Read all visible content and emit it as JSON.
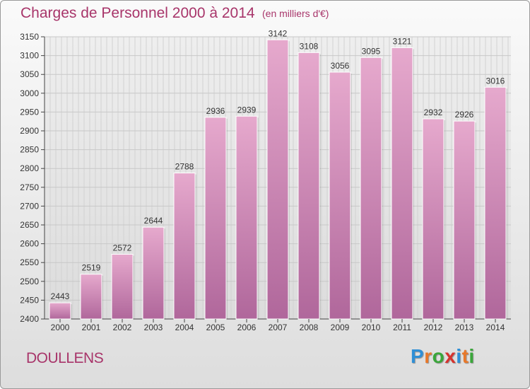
{
  "header": {
    "title": "Charges de Personnel 2000 à 2014",
    "subtitle": "(en milliers d'€)"
  },
  "footer": {
    "town": "DOULLENS",
    "logo_letters": [
      "P",
      "r",
      "o",
      "x",
      "i",
      "t",
      "i"
    ],
    "logo_colors": [
      "#2f8fd6",
      "#e8782a",
      "#3aa63a",
      "#d6322d",
      "#2f8fd6",
      "#e8782a",
      "#3aa63a"
    ]
  },
  "chart_data": {
    "type": "bar",
    "title": "Charges de Personnel 2000 à 2014",
    "subtitle": "(en milliers d'€)",
    "xlabel": "",
    "ylabel": "",
    "categories": [
      "2000",
      "2001",
      "2002",
      "2003",
      "2004",
      "2005",
      "2006",
      "2007",
      "2008",
      "2009",
      "2010",
      "2011",
      "2012",
      "2013",
      "2014"
    ],
    "values": [
      2443,
      2519,
      2572,
      2644,
      2788,
      2936,
      2939,
      3142,
      3108,
      3056,
      3095,
      3121,
      2932,
      2926,
      3016
    ],
    "ylim": [
      2400,
      3150
    ],
    "yticks": [
      2400,
      2450,
      2500,
      2550,
      2600,
      2650,
      2700,
      2750,
      2800,
      2850,
      2900,
      2950,
      3000,
      3050,
      3100,
      3150
    ],
    "grid": true,
    "bar_color": "#d17fb0"
  }
}
